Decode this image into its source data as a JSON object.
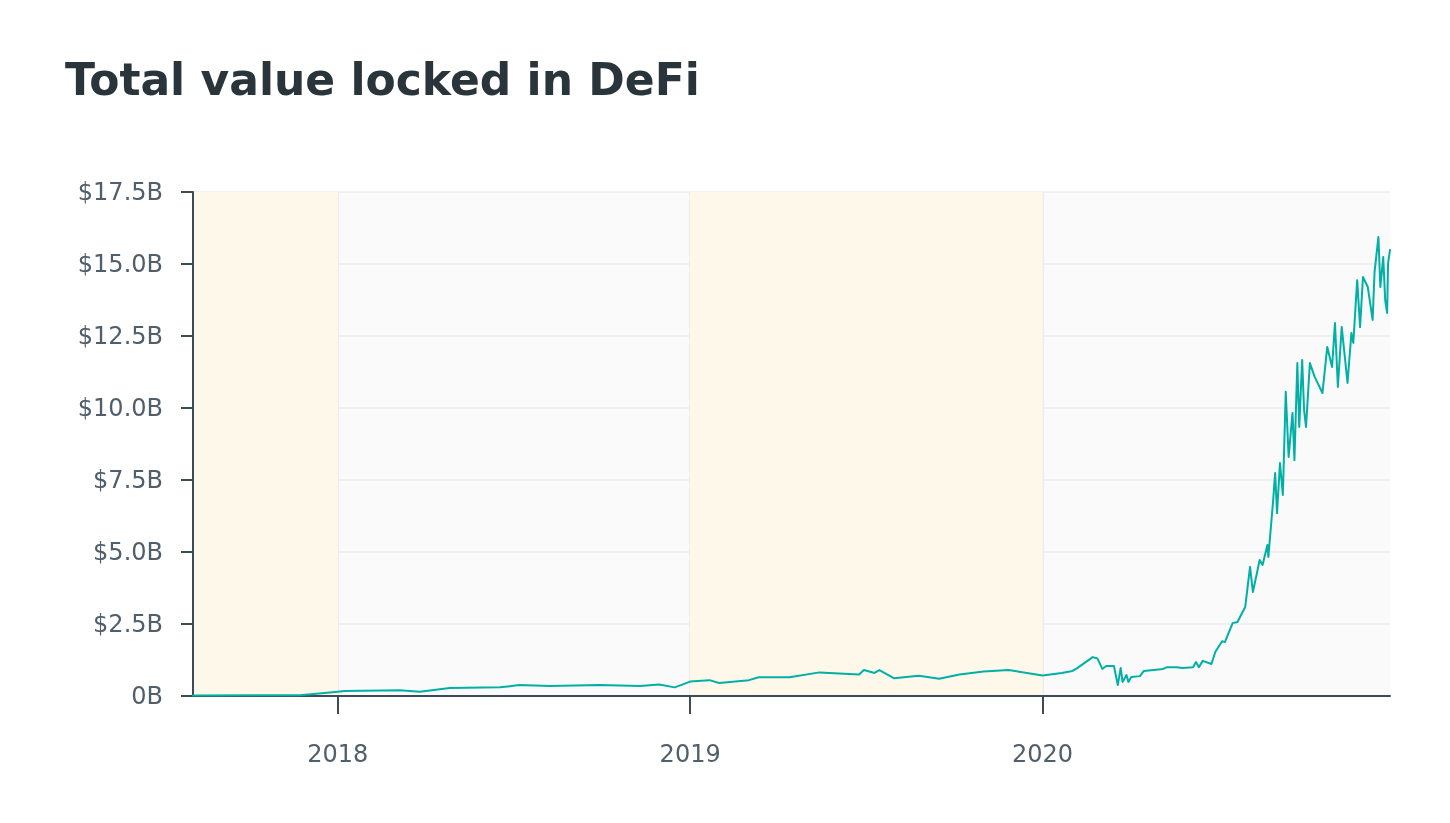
{
  "chart_data": {
    "type": "line",
    "title": "Total value locked in DeFi",
    "x": [
      "2017-08-04",
      "2017-11-23",
      "2018-01-01",
      "2018-01-08",
      "2018-03-06",
      "2018-03-27",
      "2018-04-27",
      "2018-06-18",
      "2018-07-08",
      "2018-08-09",
      "2018-09-29",
      "2018-11-10",
      "2018-11-30",
      "2018-12-16",
      "2019-01-01",
      "2019-01-21",
      "2019-01-31",
      "2019-03-03",
      "2019-03-13",
      "2019-04-14",
      "2019-05-15",
      "2019-06-25",
      "2019-06-30",
      "2019-07-11",
      "2019-07-16",
      "2019-07-31",
      "2019-08-26",
      "2019-09-16",
      "2019-10-07",
      "2019-11-01",
      "2019-11-27",
      "2020-01-01",
      "2020-01-21",
      "2020-02-01",
      "2020-02-06",
      "2020-02-22",
      "2020-02-27",
      "2020-03-03",
      "2020-03-07",
      "2020-03-15",
      "2020-03-19",
      "2020-03-22",
      "2020-03-24",
      "2020-03-28",
      "2020-03-30",
      "2020-04-02",
      "2020-04-11",
      "2020-04-15",
      "2020-05-05",
      "2020-05-09",
      "2020-05-19",
      "2020-05-25",
      "2020-06-05",
      "2020-06-08",
      "2020-06-11",
      "2020-06-15",
      "2020-06-24",
      "2020-06-28",
      "2020-07-05",
      "2020-07-08",
      "2020-07-16",
      "2020-07-21",
      "2020-07-29",
      "2020-08-03",
      "2020-08-06",
      "2020-08-13",
      "2020-08-16",
      "2020-08-21",
      "2020-08-22",
      "2020-08-27",
      "2020-08-29",
      "2020-08-31",
      "2020-09-03",
      "2020-09-06",
      "2020-09-09",
      "2020-09-12",
      "2020-09-16",
      "2020-09-18",
      "2020-09-21",
      "2020-09-23",
      "2020-09-26",
      "2020-09-28",
      "2020-09-30",
      "2020-10-04",
      "2020-10-09",
      "2020-10-17",
      "2020-10-22",
      "2020-10-27",
      "2020-10-30",
      "2020-11-02",
      "2020-11-06",
      "2020-11-12",
      "2020-11-16",
      "2020-11-18",
      "2020-11-22",
      "2020-11-25",
      "2020-11-28",
      "2020-12-03",
      "2020-12-08",
      "2020-12-10",
      "2020-12-14",
      "2020-12-16",
      "2020-12-19",
      "2020-12-21",
      "2020-12-23",
      "2020-12-24",
      "2020-12-26"
    ],
    "series": [
      {
        "color": "#00b0a6",
        "values": [
          0.02,
          0.03,
          0.15,
          0.17,
          0.2,
          0.15,
          0.28,
          0.3,
          0.38,
          0.35,
          0.38,
          0.35,
          0.4,
          0.3,
          0.5,
          0.55,
          0.45,
          0.55,
          0.65,
          0.65,
          0.82,
          0.75,
          0.9,
          0.8,
          0.9,
          0.62,
          0.7,
          0.6,
          0.75,
          0.85,
          0.9,
          0.71,
          0.8,
          0.87,
          0.97,
          1.35,
          1.3,
          0.94,
          1.04,
          1.04,
          0.38,
          0.97,
          0.49,
          0.73,
          0.49,
          0.66,
          0.69,
          0.87,
          0.94,
          1.0,
          1.0,
          0.97,
          1.0,
          1.18,
          1.0,
          1.22,
          1.11,
          1.53,
          1.9,
          1.87,
          2.53,
          2.57,
          3.09,
          4.48,
          3.61,
          4.72,
          4.55,
          5.24,
          4.83,
          6.81,
          7.74,
          6.35,
          8.09,
          6.98,
          10.56,
          8.3,
          9.83,
          8.19,
          11.56,
          9.34,
          11.67,
          9.93,
          9.34,
          11.56,
          11.08,
          10.52,
          12.12,
          11.42,
          12.95,
          10.73,
          12.81,
          10.87,
          12.6,
          12.26,
          14.44,
          12.81,
          14.55,
          14.2,
          13.06,
          14.72,
          15.94,
          14.2,
          15.24,
          13.75,
          13.3,
          15.03,
          15.49
        ]
      }
    ],
    "xlim": [
      "2017-08-04",
      "2020-12-26"
    ],
    "xticks": [
      {
        "value": "2018-01-01",
        "label": "2018"
      },
      {
        "value": "2019-01-01",
        "label": "2019"
      },
      {
        "value": "2020-01-01",
        "label": "2020"
      }
    ],
    "ylim": [
      0,
      17.5
    ],
    "yticks": [
      {
        "value": 0,
        "label": "0B"
      },
      {
        "value": 2.5,
        "label": "$2.5B"
      },
      {
        "value": 5,
        "label": "$5.0B"
      },
      {
        "value": 7.5,
        "label": "$7.5B"
      },
      {
        "value": 10,
        "label": "$10.0B"
      },
      {
        "value": 12.5,
        "label": "$12.5B"
      },
      {
        "value": 15,
        "label": "$15.0B"
      },
      {
        "value": 17.5,
        "label": "$17.5B"
      }
    ],
    "bands": [
      {
        "axis": "x",
        "from": "2017-08-04",
        "to": "2018-01-01",
        "color": "#fef8ea"
      },
      {
        "axis": "x",
        "from": "2019-01-01",
        "to": "2020-01-01",
        "color": "#fef8ea"
      }
    ],
    "grid": true,
    "marker": "none",
    "line_style": "solid"
  }
}
